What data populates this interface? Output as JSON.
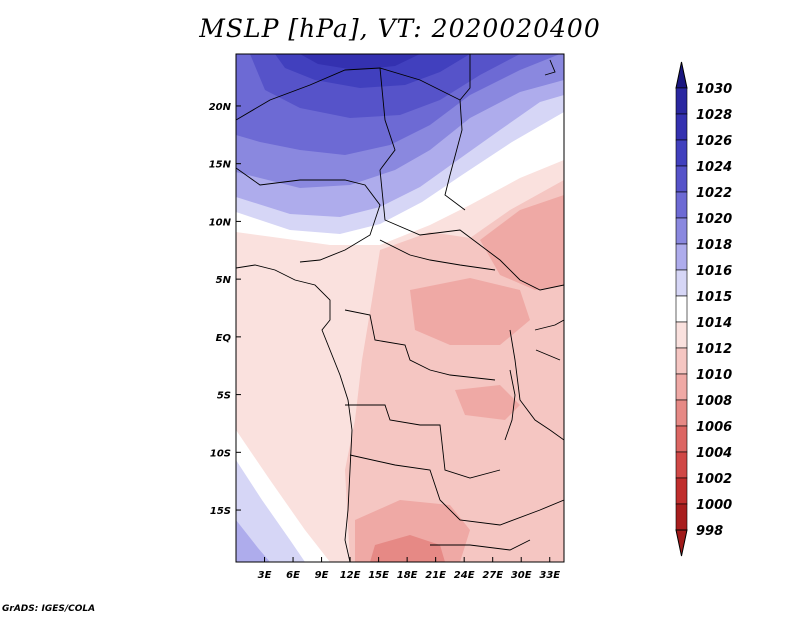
{
  "title": "MSLP [hPa], VT: 2020020400",
  "credit": "GrADS: IGES/COLA",
  "map": {
    "lon_range": [
      0,
      34.5
    ],
    "lat_range": [
      -19.5,
      24.5
    ],
    "lat_ticks": [
      {
        "value": 20,
        "label": "20N"
      },
      {
        "value": 15,
        "label": "15N"
      },
      {
        "value": 10,
        "label": "10N"
      },
      {
        "value": 5,
        "label": "5N"
      },
      {
        "value": 0,
        "label": "EQ"
      },
      {
        "value": -5,
        "label": "5S"
      },
      {
        "value": -10,
        "label": "10S"
      },
      {
        "value": -15,
        "label": "15S"
      }
    ],
    "lon_ticks": [
      {
        "value": 3,
        "label": "3E"
      },
      {
        "value": 6,
        "label": "6E"
      },
      {
        "value": 9,
        "label": "9E"
      },
      {
        "value": 12,
        "label": "12E"
      },
      {
        "value": 15,
        "label": "15E"
      },
      {
        "value": 18,
        "label": "18E"
      },
      {
        "value": 21,
        "label": "21E"
      },
      {
        "value": 24,
        "label": "24E"
      },
      {
        "value": 27,
        "label": "27E"
      },
      {
        "value": 30,
        "label": "30E"
      },
      {
        "value": 33,
        "label": "33E"
      }
    ]
  },
  "colorbar": {
    "levels": [
      {
        "label": "1030",
        "color": "#1e1a8c"
      },
      {
        "label": "1028",
        "color": "#2a27a0"
      },
      {
        "label": "1026",
        "color": "#3431b0"
      },
      {
        "label": "1024",
        "color": "#4140be"
      },
      {
        "label": "1022",
        "color": "#5653c9"
      },
      {
        "label": "1020",
        "color": "#6d6ad4"
      },
      {
        "label": "1018",
        "color": "#8a88df"
      },
      {
        "label": "1016",
        "color": "#aeacec"
      },
      {
        "label": "1015",
        "color": "#d6d6f6"
      },
      {
        "label": "1014",
        "color": "#ffffff"
      },
      {
        "label": "1012",
        "color": "#fae1de"
      },
      {
        "label": "1010",
        "color": "#f5c6c2"
      },
      {
        "label": "1008",
        "color": "#efa9a5"
      },
      {
        "label": "1006",
        "color": "#e68985"
      },
      {
        "label": "1004",
        "color": "#dc6663"
      },
      {
        "label": "1002",
        "color": "#d04846"
      },
      {
        "label": "1000",
        "color": "#c02e2d"
      },
      {
        "label": "998",
        "color": "#a81e1e"
      }
    ],
    "top_color": "#1a1680",
    "bottom_color": "#a01a1a"
  }
}
